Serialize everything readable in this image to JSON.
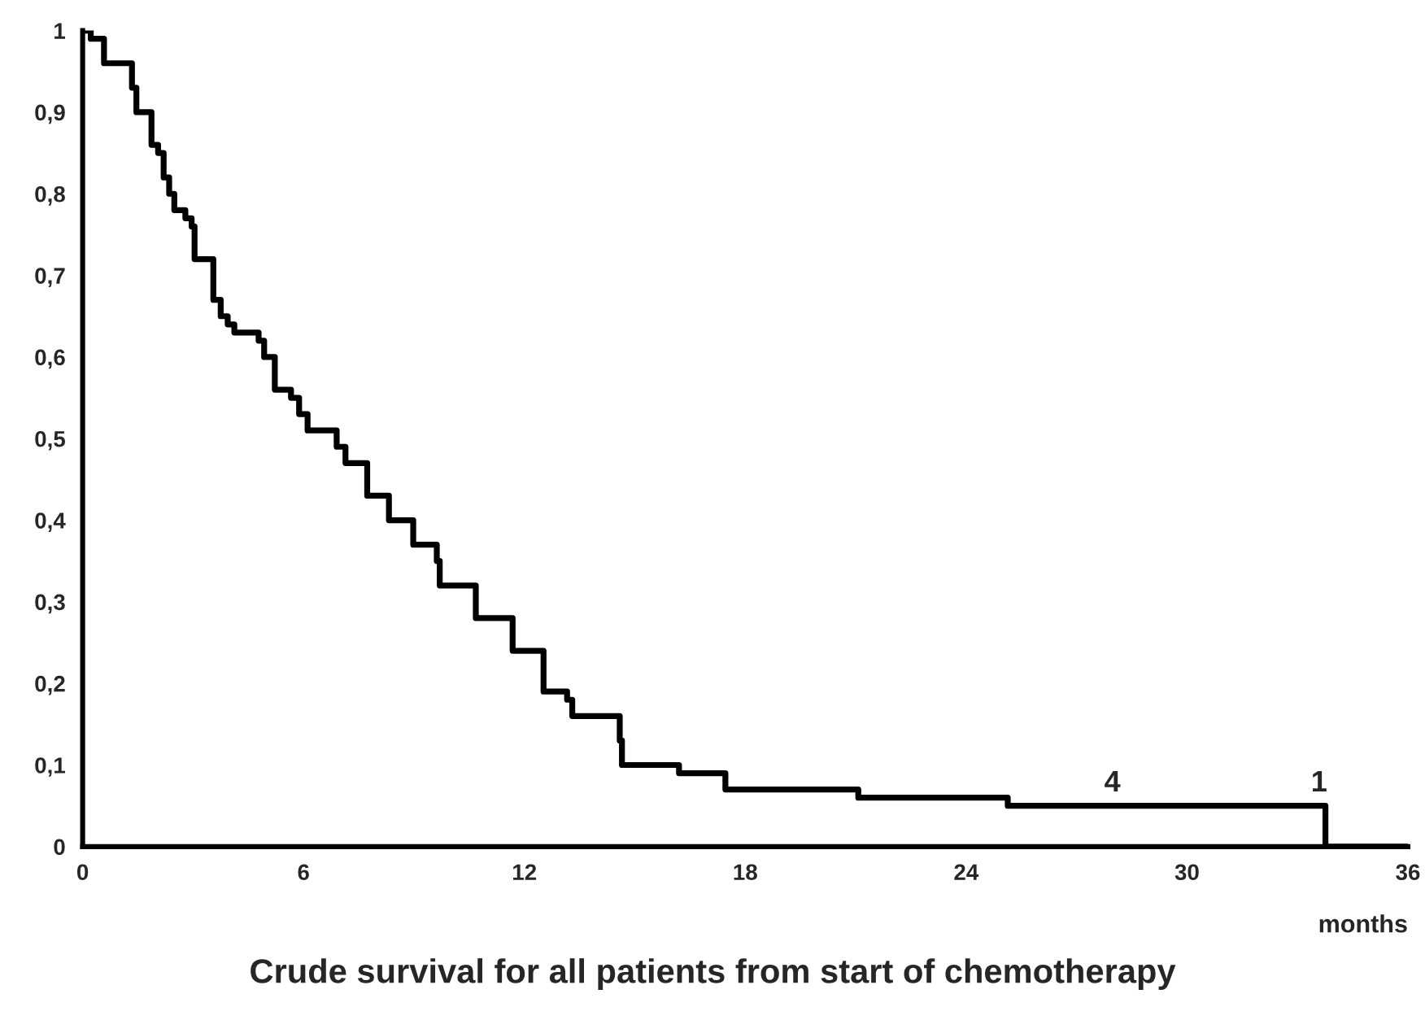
{
  "chart_data": {
    "type": "step",
    "title": "Crude survival for all patients from start of chemotherapy",
    "xlabel": "months",
    "x": [
      0,
      0.22,
      0.58,
      1.34,
      1.46,
      1.87,
      2.05,
      2.2,
      2.35,
      2.49,
      2.79,
      2.96,
      3.04,
      3.55,
      3.75,
      3.94,
      4.12,
      4.78,
      4.93,
      5.22,
      5.66,
      5.88,
      6.11,
      6.9,
      7.14,
      7.73,
      8.32,
      8.98,
      9.62,
      9.7,
      10.68,
      11.68,
      12.52,
      13.16,
      13.3,
      14.59,
      14.65,
      16.2,
      17.46,
      21.07,
      25.13,
      33.76,
      36
    ],
    "series": [
      {
        "color": "#000000",
        "values": [
          1,
          0.99,
          0.96,
          0.93,
          0.9,
          0.86,
          0.85,
          0.82,
          0.8,
          0.78,
          0.77,
          0.76,
          0.72,
          0.67,
          0.65,
          0.64,
          0.63,
          0.62,
          0.6,
          0.56,
          0.55,
          0.53,
          0.51,
          0.49,
          0.47,
          0.43,
          0.4,
          0.37,
          0.35,
          0.32,
          0.28,
          0.24,
          0.19,
          0.18,
          0.16,
          0.13,
          0.1,
          0.09,
          0.07,
          0.06,
          0.05,
          0,
          0
        ]
      }
    ],
    "xlim": [
      0,
      36
    ],
    "xticks": [
      0,
      6,
      12,
      18,
      24,
      30,
      36
    ],
    "ylim": [
      0,
      1
    ],
    "yticks": [
      {
        "value": 0,
        "label": "0"
      },
      {
        "value": 0.1,
        "label": "0,1"
      },
      {
        "value": 0.2,
        "label": "0,2"
      },
      {
        "value": 0.3,
        "label": "0,3"
      },
      {
        "value": 0.4,
        "label": "0,4"
      },
      {
        "value": 0.5,
        "label": "0,5"
      },
      {
        "value": 0.6,
        "label": "0,6"
      },
      {
        "value": 0.7,
        "label": "0,7"
      },
      {
        "value": 0.8,
        "label": "0,8"
      },
      {
        "value": 0.9,
        "label": "0,9"
      },
      {
        "value": 1,
        "label": "1"
      }
    ],
    "annotations": [
      "4",
      "1"
    ],
    "grid": false,
    "legend": false
  }
}
